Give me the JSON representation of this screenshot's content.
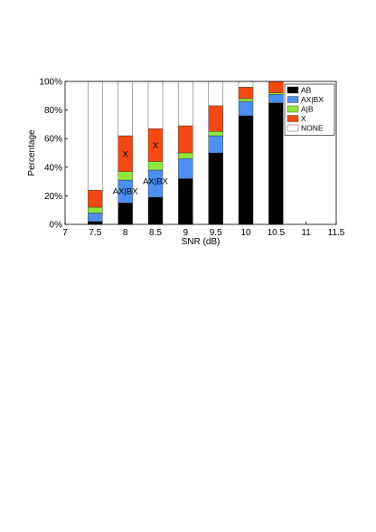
{
  "chart_data": {
    "type": "bar",
    "stacked": true,
    "xlabel": "SNR (dB)",
    "ylabel": "Percentage",
    "xlim": [
      7,
      11.5
    ],
    "ylim": [
      0,
      100
    ],
    "x_ticks": [
      "7",
      "7.5",
      "8",
      "8.5",
      "9",
      "9.5",
      "10",
      "10.5",
      "11",
      "11.5"
    ],
    "y_ticks": [
      "0%",
      "20%",
      "40%",
      "60%",
      "80%",
      "100%"
    ],
    "grid": false,
    "legend_position": "top-right",
    "x": [
      7.5,
      8,
      8.5,
      9,
      9.5,
      10,
      10.5
    ],
    "series": [
      {
        "name": "AB",
        "color": "#000000",
        "values": [
          2,
          15,
          19,
          32,
          50,
          76,
          85
        ]
      },
      {
        "name": "AX|BX",
        "color": "#4d8ff0",
        "values": [
          6,
          16,
          19,
          14,
          12,
          10,
          6
        ]
      },
      {
        "name": "A|B",
        "color": "#8ee83a",
        "values": [
          4,
          6,
          6,
          4,
          3,
          2,
          1
        ]
      },
      {
        "name": "X",
        "color": "#f24a12",
        "values": [
          12,
          25,
          23,
          19,
          18,
          8,
          8
        ]
      },
      {
        "name": "NONE",
        "color": "#ffffff",
        "values": [
          76,
          38,
          33,
          31,
          17,
          4,
          0
        ]
      }
    ],
    "annotations": [
      {
        "text": "X",
        "x": 8,
        "y": 49
      },
      {
        "text": "AX|BX",
        "x": 8,
        "y": 23
      },
      {
        "text": "X",
        "x": 8.5,
        "y": 55
      },
      {
        "text": "AX|BX",
        "x": 8.5,
        "y": 30
      }
    ]
  }
}
